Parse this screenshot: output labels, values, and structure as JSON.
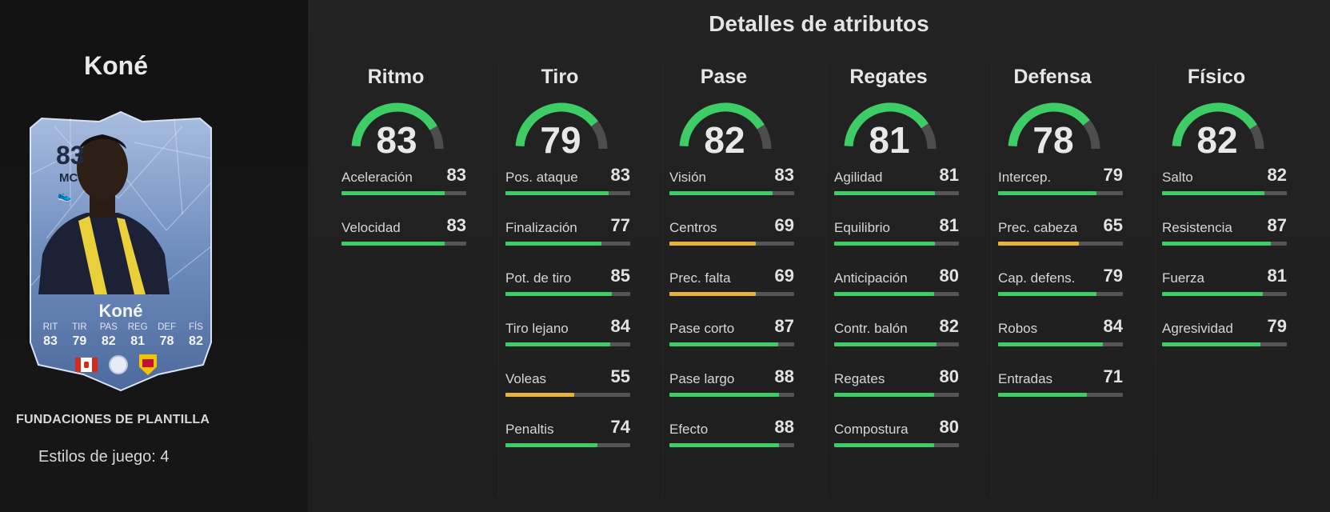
{
  "player": {
    "name": "Koné",
    "promo": "FUNDACIONES DE PLANTILLA",
    "playstyles": "Estilos de juego: 4",
    "card": {
      "rating": "83",
      "position": "MC",
      "name": "Koné",
      "stat_labels": [
        "RIT",
        "TIR",
        "PAS",
        "REG",
        "DEF",
        "FÍS"
      ],
      "stat_values": [
        "83",
        "79",
        "82",
        "81",
        "78",
        "82"
      ],
      "badges": [
        "canada-flag-icon",
        "league-icon",
        "watford-crest-icon"
      ]
    }
  },
  "section_title": "Detalles de atributos",
  "colors": {
    "green": "#3ecc67",
    "yellow": "#e8b33c",
    "track": "#555555",
    "card_blue": "#5e7cae"
  },
  "categories": [
    {
      "name": "Ritmo",
      "value": 83,
      "stats": [
        {
          "label": "Aceleración",
          "value": 83
        },
        {
          "label": "Velocidad",
          "value": 83
        }
      ]
    },
    {
      "name": "Tiro",
      "value": 79,
      "stats": [
        {
          "label": "Pos. ataque",
          "value": 83
        },
        {
          "label": "Finalización",
          "value": 77
        },
        {
          "label": "Pot. de tiro",
          "value": 85
        },
        {
          "label": "Tiro lejano",
          "value": 84
        },
        {
          "label": "Voleas",
          "value": 55
        },
        {
          "label": "Penaltis",
          "value": 74
        }
      ]
    },
    {
      "name": "Pase",
      "value": 82,
      "stats": [
        {
          "label": "Visión",
          "value": 83
        },
        {
          "label": "Centros",
          "value": 69
        },
        {
          "label": "Prec. falta",
          "value": 69
        },
        {
          "label": "Pase corto",
          "value": 87
        },
        {
          "label": "Pase largo",
          "value": 88
        },
        {
          "label": "Efecto",
          "value": 88
        }
      ]
    },
    {
      "name": "Regates",
      "value": 81,
      "stats": [
        {
          "label": "Agilidad",
          "value": 81
        },
        {
          "label": "Equilibrio",
          "value": 81
        },
        {
          "label": "Anticipación",
          "value": 80
        },
        {
          "label": "Contr. balón",
          "value": 82
        },
        {
          "label": "Regates",
          "value": 80
        },
        {
          "label": "Compostura",
          "value": 80
        }
      ]
    },
    {
      "name": "Defensa",
      "value": 78,
      "stats": [
        {
          "label": "Intercep.",
          "value": 79
        },
        {
          "label": "Prec. cabeza",
          "value": 65
        },
        {
          "label": "Cap. defens.",
          "value": 79
        },
        {
          "label": "Robos",
          "value": 84
        },
        {
          "label": "Entradas",
          "value": 71
        }
      ]
    },
    {
      "name": "Físico",
      "value": 82,
      "stats": [
        {
          "label": "Salto",
          "value": 82
        },
        {
          "label": "Resistencia",
          "value": 87
        },
        {
          "label": "Fuerza",
          "value": 81
        },
        {
          "label": "Agresividad",
          "value": 79
        }
      ]
    }
  ]
}
